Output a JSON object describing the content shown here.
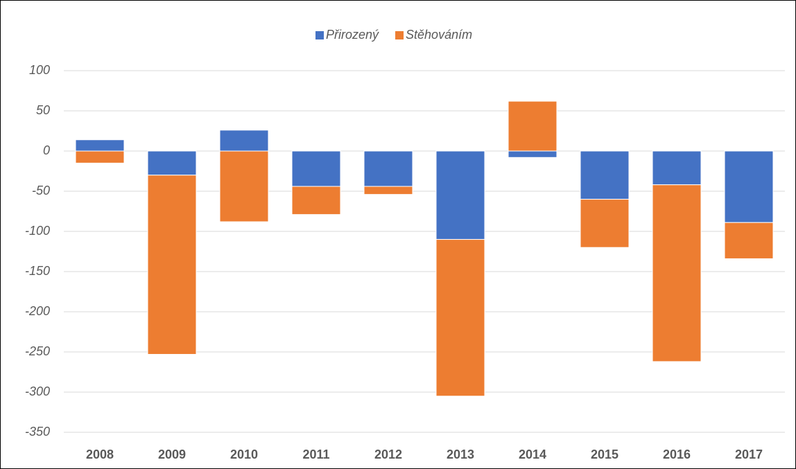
{
  "chart_data": {
    "type": "stacked_bar",
    "categories": [
      "2008",
      "2009",
      "2010",
      "2011",
      "2012",
      "2013",
      "2014",
      "2015",
      "2016",
      "2017"
    ],
    "series": [
      {
        "name": "Přirozený",
        "color": "#4472c4",
        "values": [
          14,
          -30,
          26,
          -44,
          -44,
          -110,
          -8,
          -60,
          -42,
          -89
        ]
      },
      {
        "name": "Stěhováním",
        "color": "#ed7d31",
        "values": [
          -15,
          -223,
          -88,
          -35,
          -10,
          -195,
          62,
          -60,
          -220,
          -45
        ]
      }
    ],
    "ylim": [
      -350,
      100
    ],
    "yticks": [
      -350,
      -300,
      -250,
      -200,
      -150,
      -100,
      -50,
      0,
      50,
      100
    ],
    "grid": true,
    "legend": "top"
  }
}
